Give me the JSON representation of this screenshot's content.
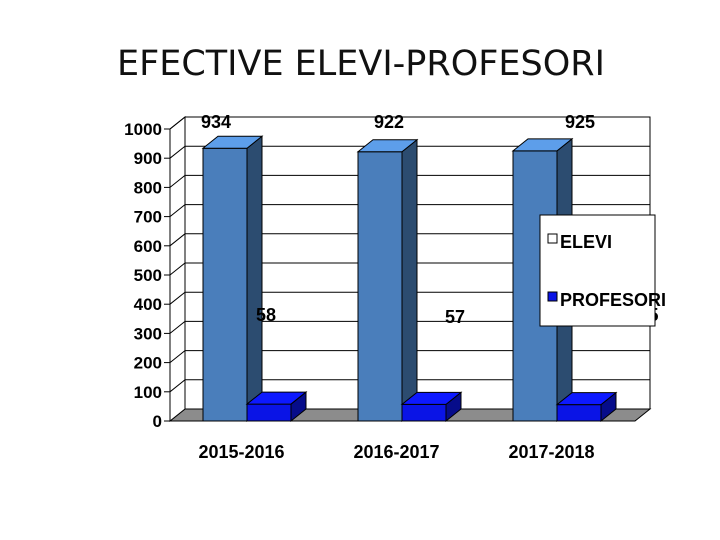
{
  "slide": {
    "title": "EFECTIVE ELEVI-PROFESORI"
  },
  "chart_data": {
    "type": "bar",
    "categories": [
      "2015-2016",
      "2016-2017",
      "2017-2018"
    ],
    "series": [
      {
        "name": "ELEVI",
        "values": [
          934,
          922,
          925
        ],
        "labels": [
          "934",
          "922",
          "925"
        ],
        "color": "#4a7ebb"
      },
      {
        "name": "PROFESORI",
        "values": [
          58,
          57,
          55.95
        ],
        "labels": [
          "58",
          "57",
          "55.95"
        ],
        "color": "#0a14e6"
      }
    ],
    "ylim": [
      0,
      1000
    ],
    "yticks": [
      0,
      100,
      200,
      300,
      400,
      500,
      600,
      700,
      800,
      900,
      1000
    ],
    "grid": true,
    "style": "3d",
    "legend": "right"
  }
}
